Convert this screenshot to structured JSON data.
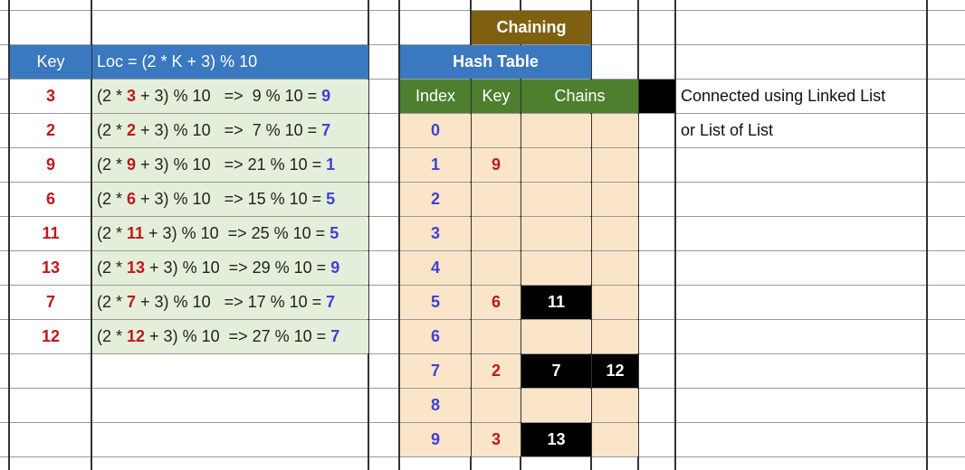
{
  "headers": {
    "key": "Key",
    "loc": "Loc = (2 * K + 3) % 10",
    "chaining": "Chaining",
    "hash_table": "Hash Table",
    "index": "Index",
    "key2": "Key",
    "chains": "Chains"
  },
  "keys": [
    {
      "key": "3",
      "pre": "(2 * ",
      "mid": " + 3) % 10   =>  9 % 10 = ",
      "result": "9"
    },
    {
      "key": "2",
      "pre": "(2 * ",
      "mid": " + 3) % 10   =>  7 % 10 = ",
      "result": "7"
    },
    {
      "key": "9",
      "pre": "(2 * ",
      "mid": " + 3) % 10   => 21 % 10 = ",
      "result": "1"
    },
    {
      "key": "6",
      "pre": "(2 * ",
      "mid": " + 3) % 10   => 15 % 10 = ",
      "result": "5"
    },
    {
      "key": "11",
      "pre": "(2 * ",
      "mid": " + 3) % 10  => 25 % 10 = ",
      "result": "5"
    },
    {
      "key": "13",
      "pre": "(2 * ",
      "mid": " + 3) % 10  => 29 % 10 = ",
      "result": "9"
    },
    {
      "key": "7",
      "pre": "(2 * ",
      "mid": " + 3) % 10   => 17 % 10 = ",
      "result": "7"
    },
    {
      "key": "12",
      "pre": "(2 * ",
      "mid": " + 3) % 10  => 27 % 10 = ",
      "result": "7"
    }
  ],
  "table": [
    {
      "index": "0",
      "key": "",
      "chain1": "",
      "chain2": ""
    },
    {
      "index": "1",
      "key": "9",
      "chain1": "",
      "chain2": ""
    },
    {
      "index": "2",
      "key": "",
      "chain1": "",
      "chain2": ""
    },
    {
      "index": "3",
      "key": "",
      "chain1": "",
      "chain2": ""
    },
    {
      "index": "4",
      "key": "",
      "chain1": "",
      "chain2": ""
    },
    {
      "index": "5",
      "key": "6",
      "chain1": "11",
      "chain2": ""
    },
    {
      "index": "6",
      "key": "",
      "chain1": "",
      "chain2": ""
    },
    {
      "index": "7",
      "key": "2",
      "chain1": "7",
      "chain2": "12"
    },
    {
      "index": "8",
      "key": "",
      "chain1": "",
      "chain2": ""
    },
    {
      "index": "9",
      "key": "3",
      "chain1": "13",
      "chain2": ""
    }
  ],
  "notes": [
    "Connected using Linked List",
    "or List of List"
  ],
  "colors": {
    "header_blue": "#3a78c0",
    "chaining_brown": "#7f6010",
    "header_green": "#4d7f2f",
    "row_green": "#e3efda",
    "table_tan": "#fbe5c8",
    "key_red": "#c0161b",
    "result_blue": "#4040d8"
  }
}
